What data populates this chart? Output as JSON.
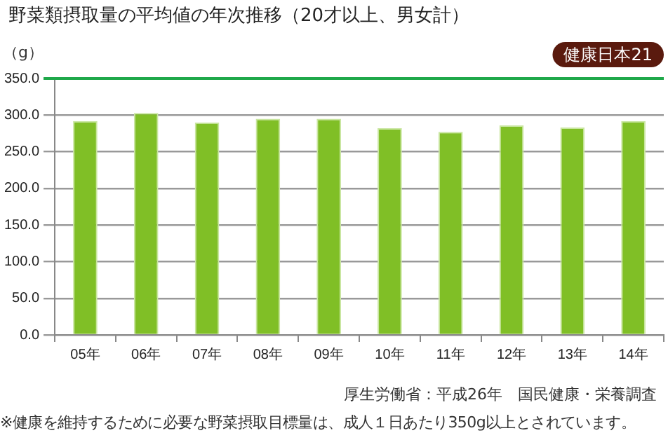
{
  "chart_data": {
    "type": "bar",
    "title": "野菜類摂取量の平均値の年次推移（20才以上、男女計）",
    "ylabel": "（g）",
    "categories": [
      "05年",
      "06年",
      "07年",
      "08年",
      "09年",
      "10年",
      "11年",
      "12年",
      "13年",
      "14年"
    ],
    "values": [
      292,
      303,
      290,
      295,
      295,
      282,
      277,
      286,
      283,
      292
    ],
    "color": "#80bf26",
    "ylim": [
      0,
      350
    ],
    "yticks": [
      {
        "value": 0,
        "label": "0.0"
      },
      {
        "value": 50,
        "label": "50.0"
      },
      {
        "value": 100,
        "label": "100.0"
      },
      {
        "value": 150,
        "label": "150.0"
      },
      {
        "value": 200,
        "label": "200.0"
      },
      {
        "value": 250,
        "label": "250.0"
      },
      {
        "value": 300,
        "label": "300.0"
      },
      {
        "value": 350,
        "label": "350.0"
      }
    ],
    "grid": "y",
    "legend": false,
    "ref_lines": [
      {
        "axis": "y",
        "value": 350,
        "label": "健康日本21",
        "color": "#1fa84a"
      }
    ],
    "annotations": [
      "厚生労働省：平成26年　国民健康・栄養調査",
      "※健康を維持するために必要な野菜摂取目標量は、成人１日あたり350g以上とされています。"
    ]
  }
}
